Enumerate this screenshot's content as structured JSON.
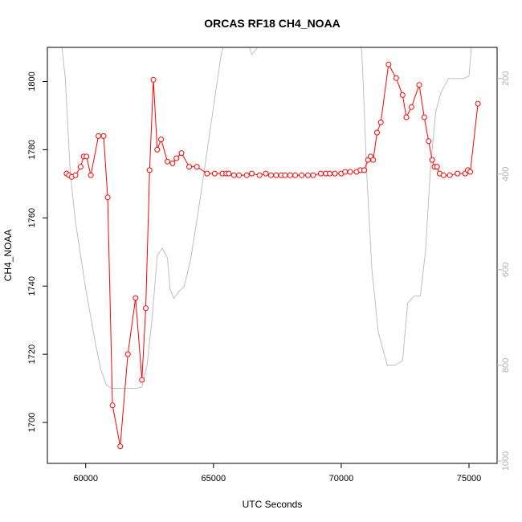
{
  "chart_data": {
    "type": "line",
    "title": "ORCAS RF18 CH4_NOAA",
    "xlabel": "UTC Seconds",
    "ylabel": "CH4_NOAA",
    "xlim": [
      58500,
      76100
    ],
    "ylim": [
      1688,
      1810
    ],
    "y2lim": [
      1005,
      135
    ],
    "x_ticks": [
      60000,
      65000,
      70000,
      75000
    ],
    "y_ticks": [
      1700,
      1720,
      1740,
      1760,
      1780,
      1800
    ],
    "y2_ticks": [
      200,
      400,
      600,
      800,
      1000
    ],
    "series": [
      {
        "name": "",
        "color": "#ff0000",
        "style": "line-with-open-circles",
        "x": [
          59250,
          59350,
          59450,
          59600,
          59800,
          59920,
          60030,
          60200,
          60500,
          60700,
          60860,
          61050,
          61350,
          61650,
          61950,
          62200,
          62350,
          62500,
          62650,
          62800,
          62950,
          63200,
          63400,
          63550,
          63750,
          64050,
          64350,
          64750,
          65050,
          65350,
          65500,
          65600,
          65800,
          66000,
          66300,
          66500,
          66800,
          67050,
          67250,
          67450,
          67650,
          67800,
          68000,
          68200,
          68450,
          68700,
          68900,
          69200,
          69400,
          69550,
          69750,
          70000,
          70150,
          70350,
          70600,
          70750,
          70900,
          71050,
          71150,
          71250,
          71400,
          71550,
          71850,
          72150,
          72400,
          72550,
          72750,
          73050,
          73250,
          73420,
          73560,
          73650,
          73750,
          73850,
          74000,
          74250,
          74550,
          74850,
          74950,
          75050,
          75350
        ],
        "y": [
          1773,
          1772.5,
          1772,
          1772.5,
          1775,
          1778,
          1778,
          1772.5,
          1784,
          1784,
          1766,
          1705,
          1693,
          1720,
          1736.5,
          1712.5,
          1733.5,
          1774,
          1800.5,
          1780,
          1783,
          1776.5,
          1776,
          1777.5,
          1779,
          1775,
          1775,
          1773,
          1773,
          1773,
          1773,
          1773,
          1772.5,
          1772.5,
          1772.5,
          1773,
          1772.5,
          1773,
          1772.5,
          1772.5,
          1772.5,
          1772.5,
          1772.5,
          1772.5,
          1772.5,
          1772.5,
          1772.5,
          1773,
          1773,
          1773,
          1773,
          1773,
          1773.5,
          1773.5,
          1773.5,
          1774,
          1774,
          1777,
          1778,
          1777,
          1785,
          1788,
          1805,
          1801,
          1796,
          1789.5,
          1792.5,
          1799,
          1789.5,
          1782.5,
          1777,
          1775,
          1775,
          1773,
          1772.5,
          1772.5,
          1773,
          1773,
          1774,
          1773.5,
          1793.5
        ]
      },
      {
        "name": "",
        "color": "#bebebe",
        "axis": "right",
        "x": [
          59000,
          59200,
          59400,
          59600,
          59800,
          60000,
          60200,
          60400,
          60600,
          60800,
          61000,
          61200,
          61500,
          61800,
          62000,
          62200,
          62400,
          62600,
          62800,
          63000,
          63200,
          63300,
          63450,
          63650,
          63850,
          64100,
          64400,
          64700,
          65000,
          65300,
          65550,
          65800,
          66000,
          66200,
          66500,
          66800,
          67000,
          67300,
          67600,
          67700,
          67900,
          68100,
          68400,
          68700,
          69000,
          69300,
          69600,
          69900,
          70200,
          70500,
          70800,
          70850,
          71000,
          71200,
          71450,
          71800,
          72100,
          72400,
          72600,
          72850,
          73100,
          73300,
          73500,
          73700,
          73900,
          74200,
          74600,
          74800,
          75000,
          75100,
          75200
        ],
        "y": [
          100,
          200,
          400,
          500,
          570,
          640,
          700,
          760,
          810,
          840,
          848,
          848,
          848,
          848,
          848,
          845,
          800,
          700,
          570,
          555,
          575,
          640,
          660,
          645,
          635,
          580,
          480,
          370,
          260,
          150,
          100,
          70,
          60,
          100,
          150,
          130,
          110,
          100,
          100,
          70,
          100,
          100,
          100,
          100,
          100,
          100,
          100,
          100,
          100,
          100,
          140,
          200,
          400,
          600,
          730,
          800,
          800,
          790,
          670,
          655,
          655,
          560,
          380,
          270,
          230,
          200,
          200,
          200,
          195,
          130,
          60
        ]
      }
    ]
  }
}
